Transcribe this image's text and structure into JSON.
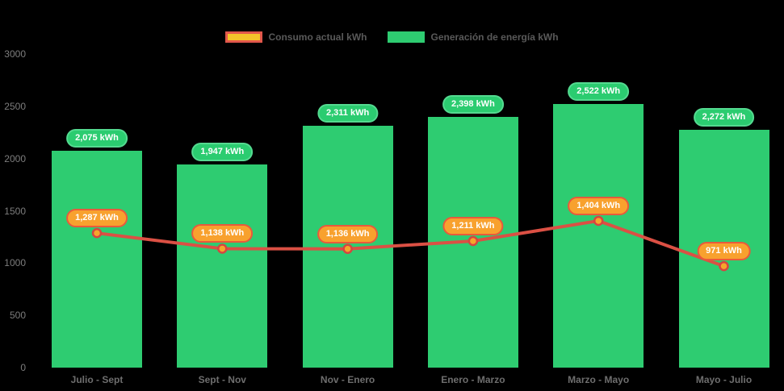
{
  "chart_data": {
    "type": "bar+line",
    "title": "",
    "background": "#000000",
    "legend_position": "top",
    "grid": false,
    "categories": [
      "Julio - Sept",
      "Sept - Nov",
      "Nov - Enero",
      "Enero - Marzo",
      "Marzo - Mayo",
      "Mayo - Julio"
    ],
    "y_ticks": [
      0,
      500,
      1000,
      1500,
      2000,
      2500,
      3000
    ],
    "ylim": [
      0,
      3000
    ],
    "legend_items": [
      {
        "label": "Consumo actual kWh",
        "fill": "#F3C32A",
        "border": "#E2574B"
      },
      {
        "label": "Generación de energía kWh",
        "fill": "#2ECC71",
        "border": "#2ECC71"
      }
    ],
    "series": [
      {
        "name": "Generación de energía kWh",
        "type": "bar",
        "color": "#2ECC71",
        "values": [
          2075,
          1947,
          2311,
          2398,
          2522,
          2272
        ],
        "value_labels": [
          "2,075 kWh",
          "1,947 kWh",
          "2,311 kWh",
          "2,398 kWh",
          "2,522 kWh",
          "2,272 kWh"
        ],
        "label_bg": "#2BCC70",
        "label_border": "#54DA90"
      },
      {
        "name": "Consumo actual kWh",
        "type": "line",
        "color": "#DB5044",
        "point_fill": "#F5A62B",
        "point_border": "#D64541",
        "values": [
          1287,
          1138,
          1136,
          1211,
          1404,
          971
        ],
        "value_labels": [
          "1,287 kWh",
          "1,138 kWh",
          "1,136 kWh",
          "1,211 kWh",
          "1,404 kWh",
          "971 kWh"
        ],
        "label_bg": "#F8A12E",
        "label_border": "#E85A3C"
      }
    ]
  }
}
